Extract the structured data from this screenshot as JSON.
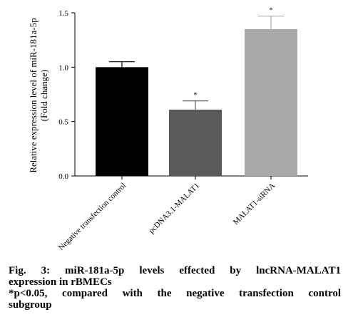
{
  "chart_data": {
    "type": "bar",
    "categories": [
      "Negative transfection control",
      "pcDNA3.1-MALAT1",
      "MALAT1-siRNA"
    ],
    "values": [
      1.0,
      0.61,
      1.35
    ],
    "errors": [
      0.05,
      0.08,
      0.12
    ],
    "significance": [
      "",
      "*",
      "*"
    ],
    "colors": [
      "#000000",
      "#5a5a5a",
      "#a8a8a8"
    ],
    "ylabel_line1": "Relative expression level of miR-181a-5p",
    "ylabel_line2": "(Fold change)",
    "ylim": [
      0.0,
      1.5
    ],
    "yticks": [
      "0.0",
      "0.5",
      "1.0",
      "1.5"
    ],
    "ytick_values": [
      0.0,
      0.5,
      1.0,
      1.5
    ]
  },
  "caption": {
    "line1": "Fig. 3: miR-181a-5p levels effected by lncRNA-MALAT1",
    "line2": "expression in rBMECs",
    "line3": "*p<0.05, compared with the negative transfection control",
    "line4": "subgroup"
  }
}
